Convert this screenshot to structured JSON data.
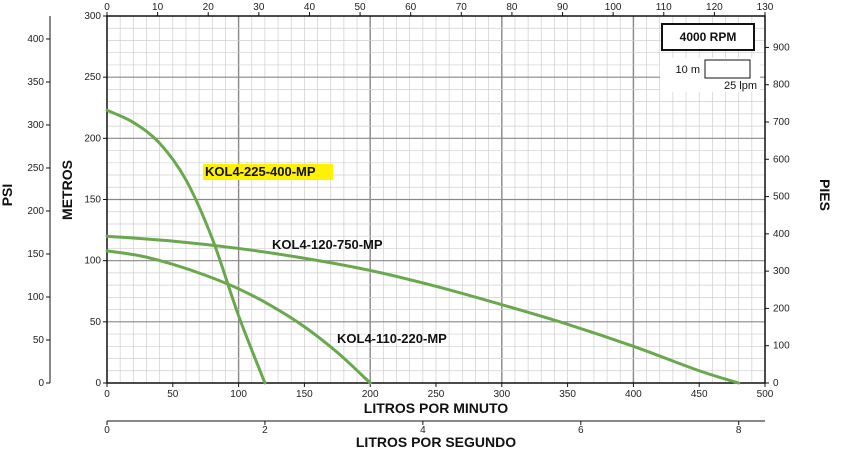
{
  "chart_data": {
    "type": "line",
    "x_bottom": {
      "label": "LITROS POR MINUTO",
      "range": [
        0,
        500
      ],
      "ticks": [
        0,
        50,
        100,
        150,
        200,
        250,
        300,
        350,
        400,
        450,
        500
      ]
    },
    "x_top": {
      "range": [
        0,
        130
      ],
      "ticks": [
        0,
        10,
        20,
        30,
        40,
        50,
        60,
        70,
        80,
        90,
        100,
        110,
        120,
        130
      ]
    },
    "x_second": {
      "label": "LITROS POR SEGUNDO",
      "range": [
        0,
        8.333
      ],
      "ticks": [
        0,
        2,
        4,
        6,
        8
      ]
    },
    "y_left": {
      "label": "METROS",
      "range": [
        0,
        300
      ],
      "ticks": [
        0,
        50,
        100,
        150,
        200,
        250,
        300
      ]
    },
    "y_psi": {
      "label": "PSI",
      "range": [
        0,
        426.7
      ],
      "ticks": [
        0,
        50,
        100,
        150,
        200,
        250,
        300,
        350,
        400
      ]
    },
    "y_right": {
      "label": "PIES",
      "range": [
        0,
        984.3
      ],
      "ticks": [
        0,
        100,
        200,
        300,
        400,
        500,
        600,
        700,
        800,
        900
      ]
    },
    "rpm": "4000 RPM",
    "scale": {
      "head": "10 m",
      "flow": "25 lpm"
    },
    "series": [
      {
        "name": "KOL4-225-400-MP",
        "color": "#6aa84f",
        "x": [
          0,
          20,
          40,
          60,
          80,
          100,
          120
        ],
        "y": [
          223,
          213,
          196,
          166,
          118,
          55,
          0
        ]
      },
      {
        "name": "KOL4-120-750-MP",
        "color": "#6aa84f",
        "x": [
          0,
          50,
          100,
          150,
          200,
          250,
          300,
          350,
          400,
          450,
          480
        ],
        "y": [
          120,
          116,
          110,
          102,
          92,
          79,
          64,
          48,
          30,
          10,
          0
        ]
      },
      {
        "name": "KOL4-110-220-MP",
        "color": "#6aa84f",
        "x": [
          0,
          25,
          50,
          75,
          100,
          125,
          150,
          175,
          200
        ],
        "y": [
          108,
          104,
          97,
          88,
          77,
          63,
          46,
          25,
          0
        ]
      }
    ]
  }
}
